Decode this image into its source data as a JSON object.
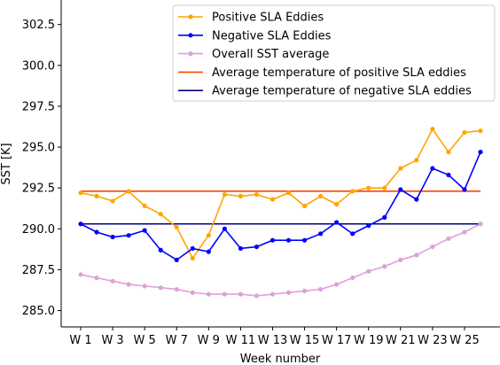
{
  "chart_data": {
    "type": "line",
    "xlabel": "Week number",
    "ylabel": "SST [K]",
    "ylim": [
      284.0,
      304.0
    ],
    "yticks": [
      285.0,
      287.5,
      290.0,
      292.5,
      295.0,
      297.5,
      300.0,
      302.5
    ],
    "ytick_labels": [
      "285.0",
      "287.5",
      "290.0",
      "292.5",
      "295.0",
      "297.5",
      "300.0",
      "302.5"
    ],
    "x": [
      "W 1",
      "W 2",
      "W 3",
      "W 4",
      "W 5",
      "W 6",
      "W 7",
      "W 8",
      "W 9",
      "W 10",
      "W 11",
      "W 12",
      "W 13",
      "W 14",
      "W 15",
      "W 16",
      "W 17",
      "W 18",
      "W 19",
      "W 20",
      "W 21",
      "W 22",
      "W 23",
      "W 24",
      "W 25",
      "W 26"
    ],
    "xtick_labels": [
      "W 1",
      "W 3",
      "W 5",
      "W 7",
      "W 9",
      "W 11",
      "W 13",
      "W 15",
      "W 17",
      "W 19",
      "W 21",
      "W 23",
      "W 25"
    ],
    "legend_position": "upper right",
    "series": [
      {
        "name": "Positive SLA Eddies",
        "color": "#ffa500",
        "style": "line-marker",
        "values": [
          292.2,
          292.0,
          291.7,
          292.3,
          291.4,
          290.9,
          290.1,
          288.2,
          289.6,
          292.1,
          292.0,
          292.1,
          291.8,
          292.2,
          291.4,
          292.0,
          291.5,
          292.3,
          292.5,
          292.5,
          293.7,
          294.2,
          296.1,
          294.7,
          295.9,
          296.0
        ]
      },
      {
        "name": "Negative SLA Eddies",
        "color": "#0000ff",
        "style": "line-marker",
        "values": [
          290.3,
          289.8,
          289.5,
          289.6,
          289.9,
          288.7,
          288.1,
          288.8,
          288.6,
          290.0,
          288.8,
          288.9,
          289.3,
          289.3,
          289.3,
          289.7,
          290.4,
          289.7,
          290.2,
          290.7,
          292.4,
          291.8,
          293.7,
          293.3,
          292.4,
          294.7
        ]
      },
      {
        "name": "Overall SST average",
        "color": "#dda0dd",
        "style": "line-marker",
        "values": [
          287.2,
          287.0,
          286.8,
          286.6,
          286.5,
          286.4,
          286.3,
          286.1,
          286.0,
          286.0,
          286.0,
          285.9,
          286.0,
          286.1,
          286.2,
          286.3,
          286.6,
          287.0,
          287.4,
          287.7,
          288.1,
          288.4,
          288.9,
          289.4,
          289.8,
          290.3
        ]
      },
      {
        "name": "Average temperature of positive SLA eddies",
        "color": "#ff4500",
        "style": "hline",
        "values": [
          292.3,
          292.3,
          292.3,
          292.3,
          292.3,
          292.3,
          292.3,
          292.3,
          292.3,
          292.3,
          292.3,
          292.3,
          292.3,
          292.3,
          292.3,
          292.3,
          292.3,
          292.3,
          292.3,
          292.3,
          292.3,
          292.3,
          292.3,
          292.3,
          292.3,
          292.3
        ]
      },
      {
        "name": "Average temperature of negative SLA eddies",
        "color": "#00008b",
        "style": "hline",
        "values": [
          290.3,
          290.3,
          290.3,
          290.3,
          290.3,
          290.3,
          290.3,
          290.3,
          290.3,
          290.3,
          290.3,
          290.3,
          290.3,
          290.3,
          290.3,
          290.3,
          290.3,
          290.3,
          290.3,
          290.3,
          290.3,
          290.3,
          290.3,
          290.3,
          290.3,
          290.3
        ]
      }
    ]
  }
}
